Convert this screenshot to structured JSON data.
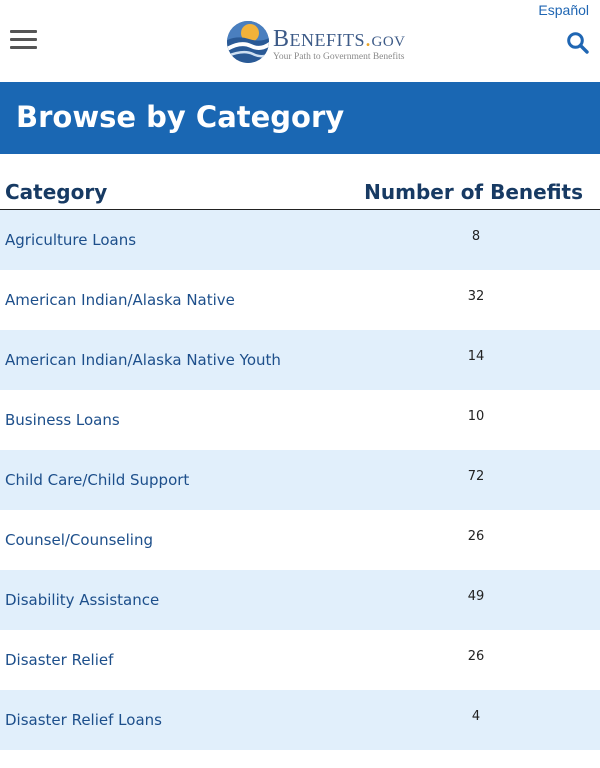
{
  "header": {
    "espanol_label": "Español",
    "logo": {
      "name_prefix": "B",
      "name_main": "ENEFITS",
      "name_dot": ".",
      "name_suffix": "GOV",
      "tagline": "Your Path to Government Benefits"
    },
    "icons": {
      "menu": "hamburger-menu-icon",
      "search": "search-icon"
    },
    "colors": {
      "brand_blue": "#1a67b3",
      "link_blue": "#1d4f8b",
      "heading_navy": "#173a63",
      "row_shade": "#e1effb"
    }
  },
  "banner": {
    "title": "Browse by Category"
  },
  "table": {
    "headers": {
      "category": "Category",
      "count": "Number of Benefits"
    },
    "rows": [
      {
        "category": "Agriculture Loans",
        "count": "8"
      },
      {
        "category": "American Indian/Alaska Native",
        "count": "32"
      },
      {
        "category": "American Indian/Alaska Native Youth",
        "count": "14"
      },
      {
        "category": "Business Loans",
        "count": "10"
      },
      {
        "category": "Child Care/Child Support",
        "count": "72"
      },
      {
        "category": "Counsel/Counseling",
        "count": "26"
      },
      {
        "category": "Disability Assistance",
        "count": "49"
      },
      {
        "category": "Disaster Relief",
        "count": "26"
      },
      {
        "category": "Disaster Relief Loans",
        "count": "4"
      }
    ]
  }
}
